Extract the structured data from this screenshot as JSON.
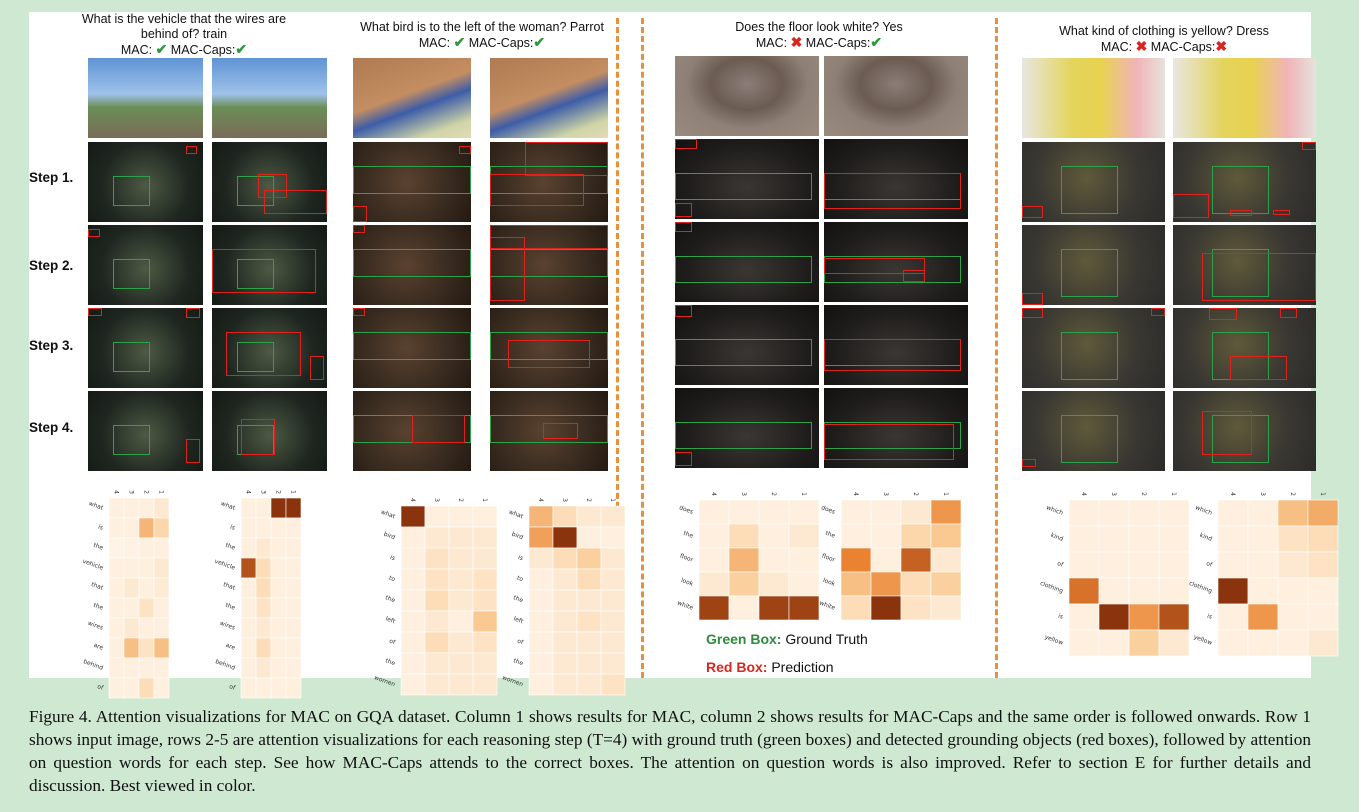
{
  "steps": [
    "Step 1.",
    "Step 2.",
    "Step 3.",
    "Step 4."
  ],
  "verdict_colors": {
    "correct": "#2e9a3c",
    "wrong": "#d8271f",
    "ground_truth": "#2ea24a",
    "prediction": "#e0221c",
    "separator": "#e8913a"
  },
  "blocks": [
    {
      "question_line1": "What is the vehicle that the wires are",
      "question_line2": "behind of? train",
      "mac_label": "MAC:",
      "mac_mark": "✔",
      "caps_label": "MAC-Caps:",
      "caps_mark": "✔",
      "mac_correct": true,
      "caps_correct": true,
      "words": [
        "what",
        "is",
        "the",
        "vehicle",
        "that",
        "the",
        "wires",
        "are",
        "behind",
        "of"
      ],
      "col_labels": [
        "4",
        "3",
        "2",
        "1"
      ],
      "mac_weights": [
        [
          0.05,
          0.05,
          0.05,
          0.1
        ],
        [
          0.05,
          0.05,
          0.45,
          0.25
        ],
        [
          0.02,
          0.03,
          0.05,
          0.05
        ],
        [
          0.05,
          0.05,
          0.05,
          0.1
        ],
        [
          0.05,
          0.1,
          0.05,
          0.08
        ],
        [
          0.05,
          0.05,
          0.15,
          0.05
        ],
        [
          0.05,
          0.1,
          0.05,
          0.05
        ],
        [
          0.05,
          0.4,
          0.15,
          0.4
        ],
        [
          0.05,
          0.05,
          0.05,
          0.05
        ],
        [
          0.05,
          0.05,
          0.2,
          0.05
        ]
      ],
      "caps_weights": [
        [
          0.05,
          0.05,
          0.95,
          0.95
        ],
        [
          0.05,
          0.05,
          0.05,
          0.05
        ],
        [
          0.05,
          0.1,
          0.05,
          0.05
        ],
        [
          0.85,
          0.2,
          0.05,
          0.05
        ],
        [
          0.05,
          0.2,
          0.05,
          0.05
        ],
        [
          0.05,
          0.15,
          0.05,
          0.05
        ],
        [
          0.05,
          0.1,
          0.05,
          0.05
        ],
        [
          0.05,
          0.2,
          0.05,
          0.05
        ],
        [
          0.05,
          0.1,
          0.05,
          0.05
        ],
        [
          0.05,
          0.05,
          0.05,
          0.05
        ]
      ]
    },
    {
      "question_line1": "What bird is to the left of the woman? Parrot",
      "question_line2": "",
      "mac_label": "MAC:",
      "mac_mark": "✔",
      "caps_label": "MAC-Caps:",
      "caps_mark": "✔",
      "mac_correct": true,
      "caps_correct": true,
      "words": [
        "what",
        "bird",
        "is",
        "to",
        "the",
        "left",
        "of",
        "the",
        "women"
      ],
      "col_labels": [
        "4",
        "3",
        "2",
        "1"
      ],
      "mac_weights": [
        [
          0.95,
          0.05,
          0.05,
          0.05
        ],
        [
          0.05,
          0.1,
          0.1,
          0.1
        ],
        [
          0.05,
          0.15,
          0.1,
          0.1
        ],
        [
          0.05,
          0.15,
          0.1,
          0.15
        ],
        [
          0.05,
          0.2,
          0.1,
          0.15
        ],
        [
          0.05,
          0.1,
          0.05,
          0.35
        ],
        [
          0.05,
          0.2,
          0.1,
          0.15
        ],
        [
          0.05,
          0.1,
          0.1,
          0.1
        ],
        [
          0.05,
          0.1,
          0.1,
          0.1
        ]
      ],
      "caps_weights": [
        [
          0.45,
          0.2,
          0.1,
          0.1
        ],
        [
          0.55,
          0.95,
          0.05,
          0.05
        ],
        [
          0.1,
          0.2,
          0.3,
          0.1
        ],
        [
          0.05,
          0.1,
          0.2,
          0.1
        ],
        [
          0.05,
          0.1,
          0.1,
          0.1
        ],
        [
          0.05,
          0.1,
          0.15,
          0.1
        ],
        [
          0.05,
          0.1,
          0.1,
          0.1
        ],
        [
          0.05,
          0.1,
          0.1,
          0.1
        ],
        [
          0.05,
          0.1,
          0.1,
          0.15
        ]
      ]
    },
    {
      "question_line1": "Does the floor look white? Yes",
      "question_line2": "",
      "mac_label": "MAC:",
      "mac_mark": "✖",
      "caps_label": "MAC-Caps:",
      "caps_mark": "✔",
      "mac_correct": false,
      "caps_correct": true,
      "words": [
        "does",
        "the",
        "floor",
        "look",
        "white"
      ],
      "col_labels": [
        "4",
        "3",
        "2",
        "1"
      ],
      "mac_weights": [
        [
          0.05,
          0.05,
          0.05,
          0.05
        ],
        [
          0.05,
          0.2,
          0.05,
          0.1
        ],
        [
          0.05,
          0.45,
          0.05,
          0.05
        ],
        [
          0.1,
          0.3,
          0.1,
          0.05
        ],
        [
          0.9,
          0.05,
          0.9,
          0.9
        ]
      ],
      "caps_weights": [
        [
          0.05,
          0.05,
          0.1,
          0.6
        ],
        [
          0.05,
          0.05,
          0.25,
          0.35
        ],
        [
          0.7,
          0.05,
          0.8,
          0.1
        ],
        [
          0.4,
          0.6,
          0.2,
          0.3
        ],
        [
          0.2,
          0.95,
          0.15,
          0.1
        ]
      ]
    },
    {
      "question_line1": "What kind of clothing is yellow? Dress",
      "question_line2": "",
      "mac_label": "MAC:",
      "mac_mark": "✖",
      "caps_label": "MAC-Caps:",
      "caps_mark": "✖",
      "mac_correct": false,
      "caps_correct": false,
      "words": [
        "which",
        "kind",
        "of",
        "clothing",
        "is",
        "yellow"
      ],
      "col_labels": [
        "4",
        "3",
        "2",
        "1"
      ],
      "mac_weights": [
        [
          0.05,
          0.05,
          0.05,
          0.05
        ],
        [
          0.05,
          0.05,
          0.05,
          0.05
        ],
        [
          0.05,
          0.05,
          0.05,
          0.05
        ],
        [
          0.75,
          0.05,
          0.05,
          0.05
        ],
        [
          0.05,
          0.95,
          0.6,
          0.85
        ],
        [
          0.05,
          0.05,
          0.3,
          0.1
        ]
      ],
      "caps_weights": [
        [
          0.05,
          0.05,
          0.4,
          0.5
        ],
        [
          0.05,
          0.05,
          0.15,
          0.2
        ],
        [
          0.05,
          0.05,
          0.1,
          0.15
        ],
        [
          0.95,
          0.05,
          0.05,
          0.05
        ],
        [
          0.05,
          0.6,
          0.05,
          0.05
        ],
        [
          0.05,
          0.05,
          0.05,
          0.1
        ]
      ]
    }
  ],
  "legend": {
    "green_title": "Green Box:",
    "green_text": " Ground Truth",
    "red_title": "Red Box:",
    "red_text": " Prediction"
  },
  "caption": "Figure 4. Attention visualizations for MAC on GQA dataset. Column 1 shows results for MAC, column 2 shows results for MAC-Caps and the same order is followed onwards. Row 1 shows input image, rows 2-5 are attention visualizations for each reasoning step (T=4) with ground truth (green boxes) and detected grounding objects (red boxes), followed by attention on question words for each step. See how MAC-Caps attends to the correct boxes. The attention on question words is also improved. Refer to section E for further details and discussion. Best viewed in color."
}
